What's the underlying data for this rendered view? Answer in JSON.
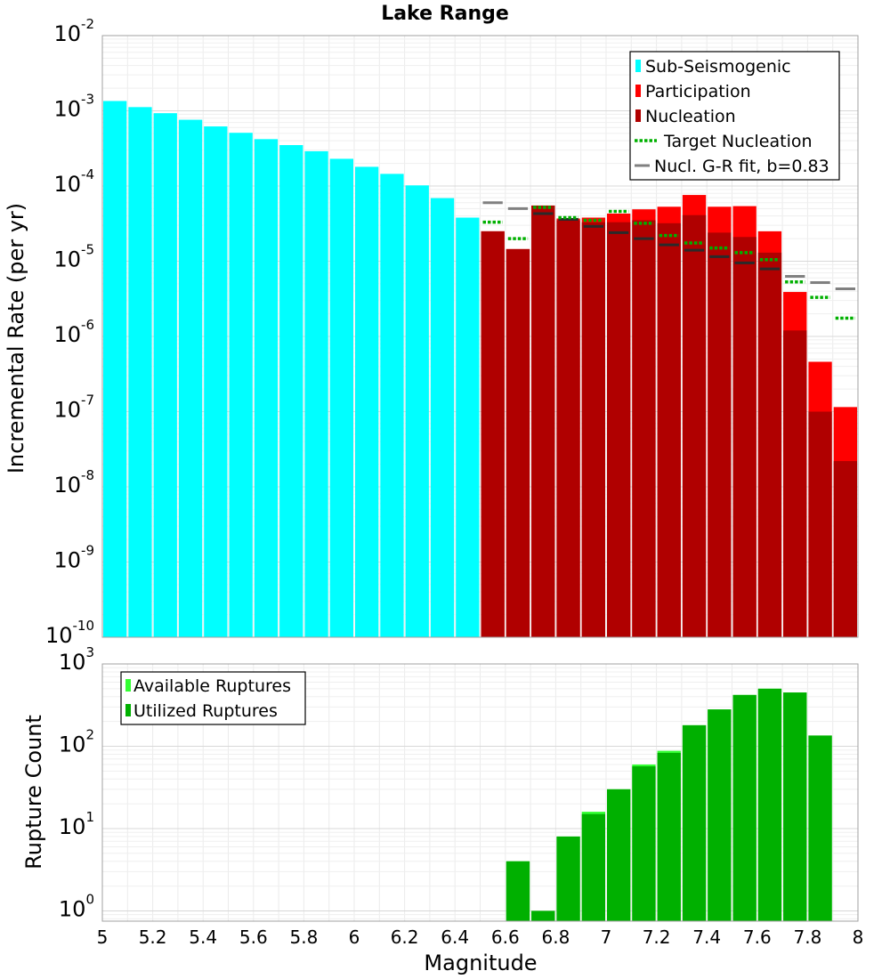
{
  "title": "Lake Range",
  "chart_data": [
    {
      "type": "bar",
      "title": "Lake Range",
      "xlabel": "",
      "ylabel": "Incremental Rate (per yr)",
      "xlim": [
        5.0,
        8.0
      ],
      "ylim": [
        1e-10,
        0.01
      ],
      "y_scale": "log",
      "grid": true,
      "bin_width": 0.1,
      "legend_position": "top-right",
      "y_tick_exponents": [
        "-10",
        "-9",
        "-8",
        "-7",
        "-6",
        "-5",
        "-4",
        "-3",
        "-2"
      ],
      "legend": [
        {
          "label": "Sub-Seismogenic",
          "color": "#00ffff",
          "style": "bar"
        },
        {
          "label": "Participation",
          "color": "#ff0000",
          "style": "bar"
        },
        {
          "label": "Nucleation",
          "color": "#b00000",
          "style": "bar"
        },
        {
          "label": "Target Nucleation",
          "color": "#00b000",
          "style": "dotted"
        },
        {
          "label": "Nucl. G-R fit, b=0.83",
          "color": "#808080",
          "style": "line"
        }
      ],
      "series": [
        {
          "name": "Sub-Seismogenic",
          "color": "#00ffff",
          "x": [
            5.05,
            5.15,
            5.25,
            5.35,
            5.45,
            5.55,
            5.65,
            5.75,
            5.85,
            5.95,
            6.05,
            6.15,
            6.25,
            6.35,
            6.45
          ],
          "values": [
            0.00135,
            0.00112,
            0.00093,
            0.00076,
            0.00062,
            0.00051,
            0.00042,
            0.00035,
            0.00029,
            0.00023,
            0.00018,
            0.000145,
            0.000102,
            6.9e-05,
            3.8e-05
          ]
        },
        {
          "name": "Participation",
          "color": "#ff0000",
          "x": [
            6.55,
            6.65,
            6.75,
            6.85,
            6.95,
            7.05,
            7.15,
            7.25,
            7.35,
            7.45,
            7.55,
            7.65,
            7.75,
            7.85,
            7.95
          ],
          "values": [
            2.5e-05,
            1.45e-05,
            5.5e-05,
            3.7e-05,
            3.8e-05,
            4.3e-05,
            4.9e-05,
            5.3e-05,
            7.6e-05,
            5.3e-05,
            5.4e-05,
            2.5e-05,
            3.9e-06,
            4.6e-07,
            1.15e-07
          ]
        },
        {
          "name": "Nucleation",
          "color": "#b00000",
          "x": [
            6.55,
            6.65,
            6.75,
            6.85,
            6.95,
            7.05,
            7.15,
            7.25,
            7.35,
            7.45,
            7.55,
            7.65,
            7.75,
            7.85,
            7.95
          ],
          "values": [
            2.5e-05,
            1.45e-05,
            5.5e-05,
            3.5e-05,
            3.3e-05,
            3.3e-05,
            3.5e-05,
            3.2e-05,
            4.1e-05,
            2.4e-05,
            2.1e-05,
            1.3e-05,
            1.2e-06,
            1e-07,
            2.2e-08
          ]
        },
        {
          "name": "Target Nucleation",
          "color": "#00b000",
          "x": [
            6.55,
            6.65,
            6.75,
            6.85,
            6.95,
            7.05,
            7.15,
            7.25,
            7.35,
            7.45,
            7.55,
            7.65,
            7.75,
            7.85,
            7.95
          ],
          "values": [
            3.3e-05,
            2e-05,
            5.2e-05,
            3.8e-05,
            3.5e-05,
            4.6e-05,
            3.2e-05,
            2.2e-05,
            1.75e-05,
            1.5e-05,
            1.3e-05,
            1.05e-05,
            5.3e-06,
            3.3e-06,
            1.75e-06
          ]
        },
        {
          "name": "Nucl. G-R fit, b=0.83",
          "color": "#808080",
          "x": [
            6.55,
            6.65,
            6.75,
            6.85,
            6.95,
            7.05,
            7.15,
            7.25,
            7.35,
            7.45,
            7.55,
            7.65,
            7.75,
            7.85,
            7.95
          ],
          "values": [
            6e-05,
            5e-05,
            4.3e-05,
            3.6e-05,
            2.9e-05,
            2.4e-05,
            2e-05,
            1.65e-05,
            1.4e-05,
            1.15e-05,
            9.5e-06,
            7.9e-06,
            6.3e-06,
            5.2e-06,
            4.3e-06
          ]
        }
      ]
    },
    {
      "type": "bar",
      "xlabel": "Magnitude",
      "ylabel": "Rupture Count",
      "xlim": [
        5.0,
        8.0
      ],
      "ylim": [
        0.75,
        1000
      ],
      "y_scale": "log",
      "grid": true,
      "bin_width": 0.1,
      "legend_position": "top-left",
      "x_ticks": [
        "5",
        "5.2",
        "5.4",
        "5.6",
        "5.8",
        "6",
        "6.2",
        "6.4",
        "6.6",
        "6.8",
        "7",
        "7.2",
        "7.4",
        "7.6",
        "7.8",
        "8"
      ],
      "y_tick_exponents": [
        "0",
        "1",
        "2",
        "3"
      ],
      "legend": [
        {
          "label": "Available Ruptures",
          "color": "#33ff33",
          "style": "bar"
        },
        {
          "label": "Utilized Ruptures",
          "color": "#00b000",
          "style": "bar"
        }
      ],
      "series": [
        {
          "name": "Available Ruptures",
          "color": "#33ff33",
          "x": [
            6.65,
            6.75,
            6.85,
            6.95,
            7.05,
            7.15,
            7.25,
            7.35,
            7.45,
            7.55,
            7.65,
            7.75,
            7.85
          ],
          "values": [
            4,
            1,
            8,
            16,
            30,
            60,
            88,
            180,
            280,
            420,
            500,
            450,
            135
          ]
        },
        {
          "name": "Utilized Ruptures",
          "color": "#00b000",
          "x": [
            6.65,
            6.75,
            6.85,
            6.95,
            7.05,
            7.15,
            7.25,
            7.35,
            7.45,
            7.55,
            7.65,
            7.75,
            7.85
          ],
          "values": [
            4,
            1,
            8,
            15,
            30,
            57,
            83,
            180,
            280,
            420,
            500,
            450,
            135
          ]
        }
      ]
    }
  ]
}
